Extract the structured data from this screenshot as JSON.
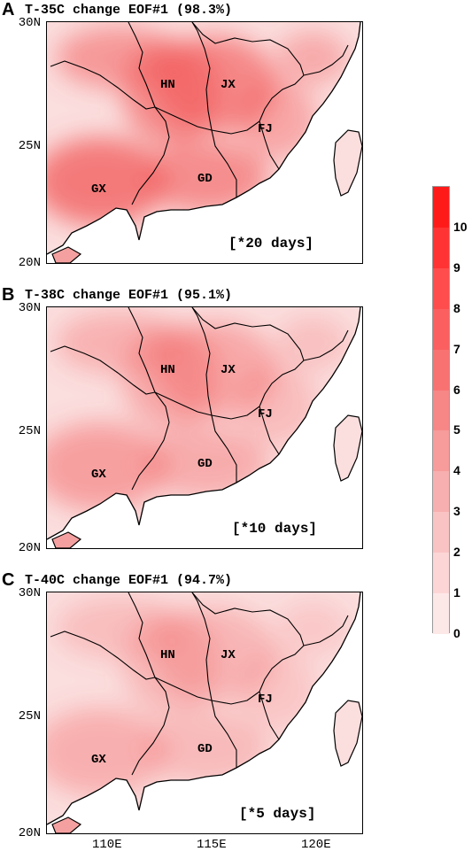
{
  "panels": [
    {
      "letter": "A",
      "title": "T-35C change EOF#1 (98.3%)",
      "days": "[*20 days]",
      "intensity": 1.0
    },
    {
      "letter": "B",
      "title": "T-38C change EOF#1 (95.1%)",
      "days": "[*10 days]",
      "intensity": 0.62
    },
    {
      "letter": "C",
      "title": "T-40C change EOF#1 (94.7%)",
      "days": "[*5 days]",
      "intensity": 0.45
    }
  ],
  "provinces": [
    "HN",
    "JX",
    "FJ",
    "GX",
    "GD"
  ],
  "lat_labels": [
    "30N",
    "25N",
    "20N"
  ],
  "lon_labels": [
    "110E",
    "115E",
    "120E"
  ],
  "colorbar": {
    "ticks": [
      "10",
      "9",
      "8",
      "7",
      "6",
      "5",
      "4",
      "3",
      "2",
      "1",
      "0"
    ],
    "colors": [
      "#ff1a1a",
      "#ff3333",
      "#ff4d4d",
      "#fb5f5f",
      "#f97272",
      "#f78787",
      "#f79b9b",
      "#f8afaf",
      "#fac3c3",
      "#fcd6d6",
      "#fde8e8"
    ]
  }
}
